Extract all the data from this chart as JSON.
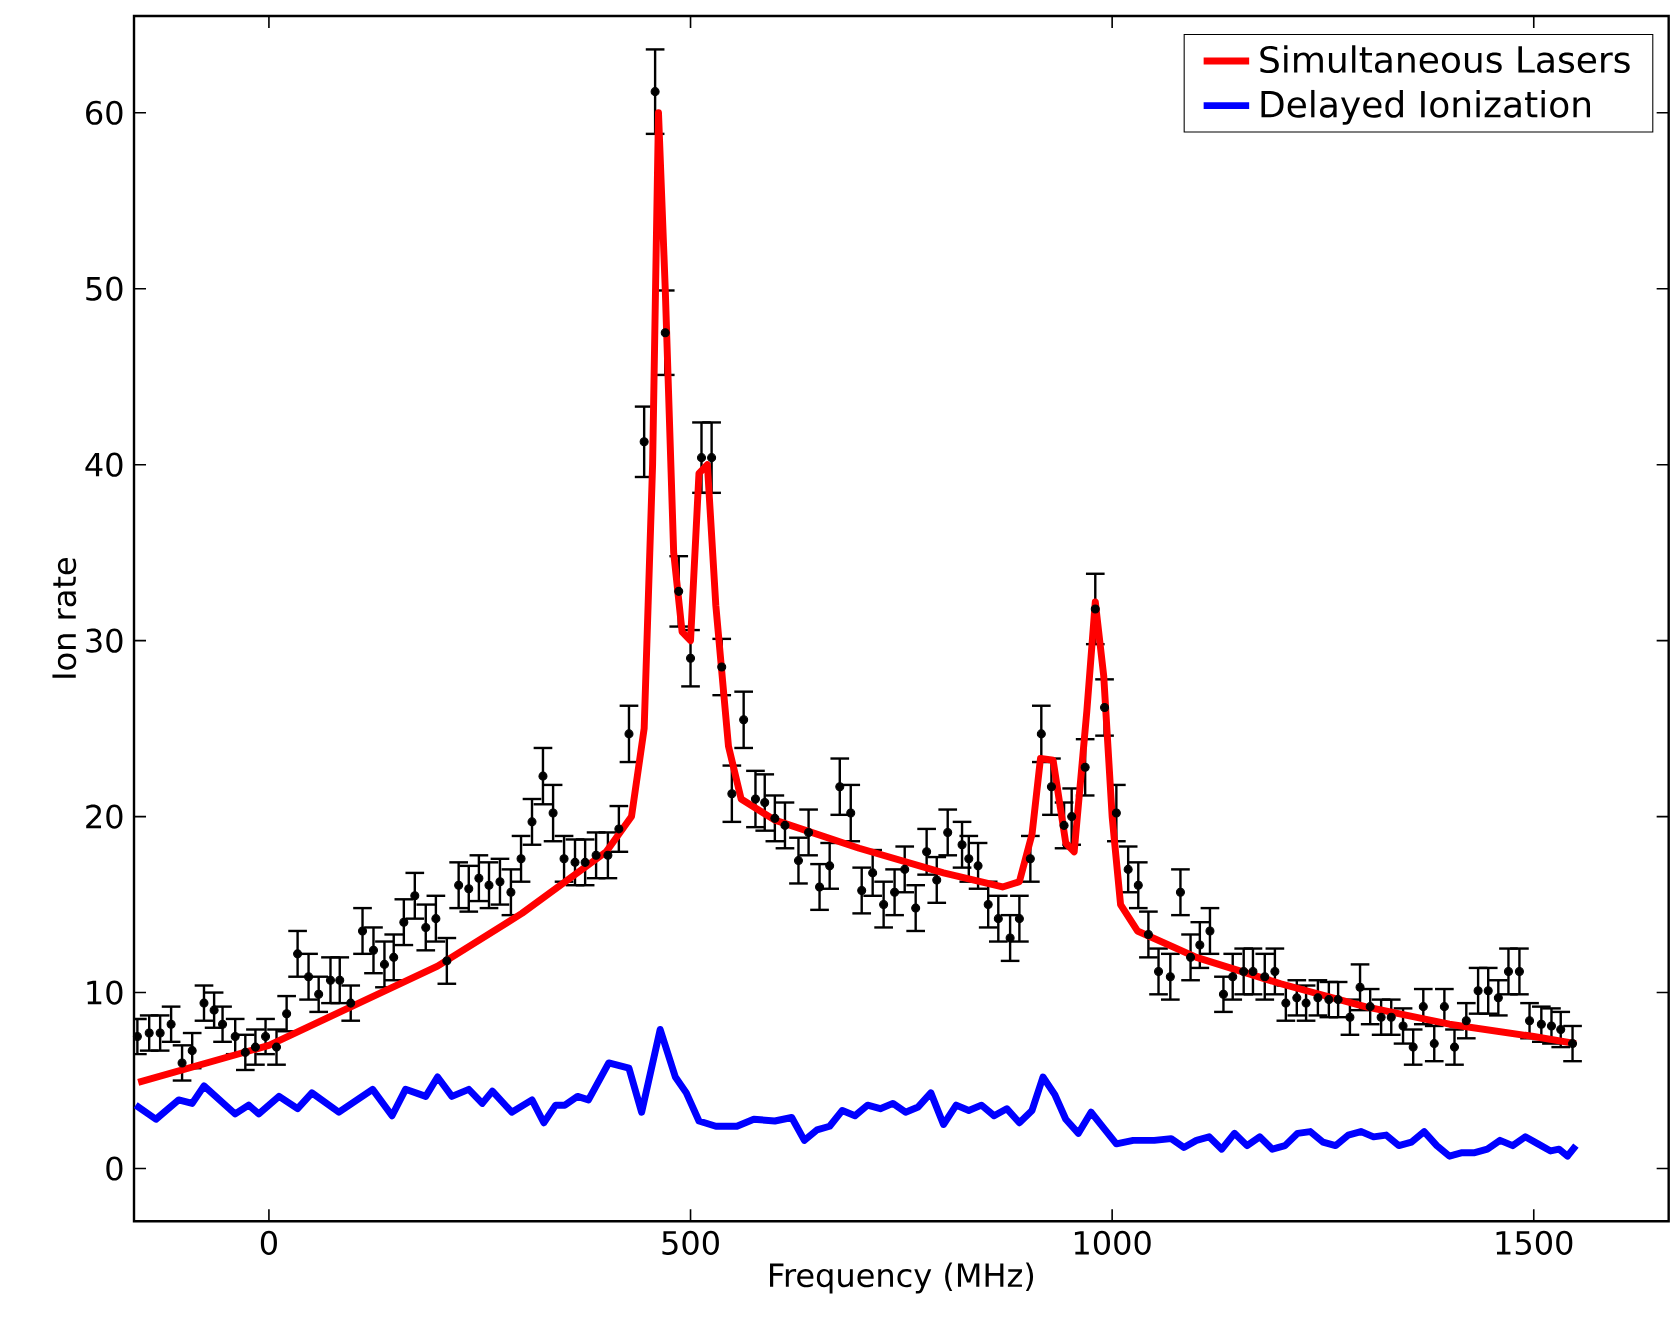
{
  "chart_data": {
    "type": "line",
    "xlabel": "Frequency (MHz)",
    "ylabel": "Ion rate",
    "xlim": [
      -160,
      1660
    ],
    "ylim": [
      -3,
      65.5
    ],
    "xticks": [
      0,
      500,
      1000,
      1500
    ],
    "yticks": [
      0,
      10,
      20,
      30,
      40,
      50,
      60
    ],
    "legend": "top right",
    "series": [
      {
        "type": "scatter",
        "color": "#000000",
        "x": [
          -156,
          -142,
          -129,
          -116,
          -103,
          -91,
          -77,
          -65,
          -55,
          -40,
          -28,
          -16,
          -4,
          9,
          21,
          34,
          47,
          59,
          73,
          84,
          97,
          111,
          124,
          137,
          148,
          160,
          173,
          186,
          198,
          211,
          225,
          237,
          249,
          261,
          274,
          287,
          299,
          312,
          325,
          337,
          350,
          363,
          375,
          388,
          402,
          415,
          427,
          445,
          458,
          470,
          486,
          500,
          513,
          525,
          537,
          549,
          563,
          577,
          588,
          600,
          612,
          628,
          640,
          653,
          665,
          677,
          690,
          703,
          716,
          729,
          742,
          754,
          767,
          780,
          792,
          805,
          822,
          830,
          841,
          853,
          865,
          879,
          890,
          903,
          916,
          928,
          943,
          952,
          968,
          980,
          991,
          1005,
          1019,
          1031,
          1043,
          1055,
          1069,
          1081,
          1093,
          1104,
          1116,
          1132,
          1143,
          1156,
          1167,
          1181,
          1193,
          1206,
          1219,
          1230,
          1244,
          1257,
          1268,
          1282,
          1294,
          1306,
          1319,
          1331,
          1345,
          1357,
          1369,
          1382,
          1394,
          1406,
          1420,
          1434,
          1446,
          1458,
          1470,
          1483,
          1495,
          1509,
          1521,
          1532,
          1546
        ],
        "values": [
          7.5,
          7.7,
          7.7,
          8.2,
          6.0,
          6.7,
          9.4,
          9.0,
          8.2,
          7.5,
          6.6,
          6.9,
          7.5,
          6.9,
          8.8,
          12.2,
          10.9,
          9.9,
          10.7,
          10.7,
          9.4,
          13.5,
          12.4,
          11.6,
          12.0,
          14.0,
          15.5,
          13.7,
          14.2,
          11.8,
          16.1,
          15.9,
          16.5,
          16.1,
          16.3,
          15.7,
          17.6,
          19.7,
          22.3,
          20.2,
          17.6,
          17.4,
          17.4,
          17.8,
          17.8,
          19.3,
          24.7,
          41.3,
          61.2,
          47.5,
          32.8,
          29.0,
          40.4,
          40.4,
          28.5,
          21.3,
          25.5,
          21.0,
          20.8,
          19.9,
          19.5,
          17.5,
          19.1,
          16.0,
          17.2,
          21.7,
          20.2,
          15.8,
          16.8,
          15.0,
          15.7,
          17.0,
          14.8,
          18.0,
          16.4,
          19.1,
          18.4,
          17.6,
          17.2,
          15.0,
          14.2,
          13.1,
          14.2,
          17.6,
          24.7,
          21.7,
          19.5,
          20.0,
          22.8,
          31.8,
          26.2,
          20.2,
          17.0,
          16.1,
          13.3,
          11.2,
          10.9,
          15.7,
          12.0,
          12.7,
          13.5,
          9.9,
          10.9,
          11.2,
          11.2,
          10.9,
          11.2,
          9.4,
          9.7,
          9.4,
          9.7,
          9.6,
          9.6,
          8.6,
          10.3,
          9.2,
          8.6,
          8.6,
          8.1,
          6.9,
          9.2,
          7.1,
          9.2,
          6.9,
          8.4,
          10.1,
          10.1,
          9.7,
          11.2,
          11.2,
          8.4,
          8.2,
          8.1,
          7.9,
          7.1
        ],
        "errors": [
          1.0,
          1.0,
          1.0,
          1.0,
          1.0,
          1.0,
          1.0,
          1.0,
          1.0,
          1.0,
          1.0,
          1.0,
          1.0,
          1.0,
          1.0,
          1.3,
          1.3,
          1.0,
          1.3,
          1.3,
          1.0,
          1.3,
          1.3,
          1.3,
          1.3,
          1.3,
          1.3,
          1.3,
          1.3,
          1.3,
          1.3,
          1.3,
          1.3,
          1.3,
          1.3,
          1.3,
          1.3,
          1.3,
          1.6,
          1.6,
          1.3,
          1.3,
          1.3,
          1.3,
          1.3,
          1.3,
          1.6,
          2.0,
          2.4,
          2.4,
          2.0,
          1.6,
          2.0,
          2.0,
          1.6,
          1.6,
          1.6,
          1.6,
          1.6,
          1.3,
          1.3,
          1.3,
          1.3,
          1.3,
          1.3,
          1.6,
          1.6,
          1.3,
          1.3,
          1.3,
          1.3,
          1.3,
          1.3,
          1.3,
          1.3,
          1.3,
          1.3,
          1.3,
          1.3,
          1.3,
          1.3,
          1.3,
          1.3,
          1.3,
          1.6,
          1.6,
          1.3,
          1.6,
          1.6,
          2.0,
          1.6,
          1.6,
          1.3,
          1.3,
          1.3,
          1.3,
          1.3,
          1.3,
          1.3,
          1.3,
          1.3,
          1.0,
          1.3,
          1.3,
          1.3,
          1.3,
          1.3,
          1.0,
          1.0,
          1.0,
          1.0,
          1.0,
          1.0,
          1.0,
          1.3,
          1.0,
          1.0,
          1.0,
          1.0,
          1.0,
          1.0,
          1.0,
          1.0,
          1.0,
          1.0,
          1.3,
          1.3,
          1.0,
          1.3,
          1.3,
          1.0,
          1.0,
          1.0,
          1.0,
          1.0
        ]
      },
      {
        "name": "Simultaneous Lasers",
        "color": "#ff0000",
        "x": [
          -155,
          0,
          200,
          300,
          400,
          430,
          445,
          455,
          462,
          470,
          480,
          490,
          500,
          510,
          520,
          530,
          545,
          560,
          600,
          700,
          800,
          870,
          890,
          905,
          915,
          930,
          945,
          955,
          970,
          980,
          990,
          1000,
          1010,
          1030,
          1100,
          1200,
          1300,
          1400,
          1500,
          1550
        ],
        "values": [
          4.9,
          7.0,
          11.5,
          14.5,
          18.0,
          20.0,
          25.0,
          40.0,
          60.0,
          50.0,
          35.0,
          30.5,
          30.0,
          39.5,
          40.0,
          32.0,
          24.0,
          21.0,
          19.8,
          18.2,
          16.8,
          16.0,
          16.3,
          19.0,
          23.3,
          23.2,
          18.5,
          18.0,
          26.0,
          32.2,
          28.0,
          20.0,
          15.0,
          13.5,
          12.0,
          10.5,
          9.2,
          8.2,
          7.5,
          7.1
        ]
      },
      {
        "name": "Delayed Ionization",
        "color": "#0000ff",
        "x": [
          -158,
          -134,
          -107,
          -91,
          -77,
          -40,
          -24,
          -12,
          12,
          34,
          51,
          83,
          123,
          146,
          162,
          186,
          200,
          217,
          237,
          253,
          265,
          288,
          312,
          326,
          340,
          351,
          366,
          379,
          403,
          427,
          442,
          464,
          482,
          495,
          510,
          530,
          555,
          575,
          600,
          620,
          635,
          650,
          665,
          680,
          695,
          710,
          725,
          740,
          755,
          770,
          785,
          800,
          815,
          830,
          845,
          860,
          875,
          890,
          905,
          918,
          932,
          945,
          960,
          975,
          990,
          1005,
          1025,
          1050,
          1070,
          1085,
          1100,
          1115,
          1130,
          1145,
          1160,
          1175,
          1190,
          1205,
          1220,
          1235,
          1250,
          1265,
          1280,
          1295,
          1310,
          1325,
          1340,
          1355,
          1370,
          1385,
          1400,
          1415,
          1430,
          1445,
          1460,
          1475,
          1490,
          1505,
          1520,
          1530,
          1540,
          1550
        ],
        "values": [
          3.6,
          2.8,
          3.9,
          3.7,
          4.7,
          3.1,
          3.6,
          3.1,
          4.1,
          3.4,
          4.3,
          3.2,
          4.5,
          3.0,
          4.5,
          4.1,
          5.2,
          4.1,
          4.5,
          3.7,
          4.4,
          3.2,
          3.9,
          2.6,
          3.6,
          3.6,
          4.1,
          3.9,
          6.0,
          5.7,
          3.2,
          7.9,
          5.2,
          4.3,
          2.7,
          2.4,
          2.4,
          2.8,
          2.7,
          2.9,
          1.6,
          2.2,
          2.4,
          3.3,
          3.0,
          3.6,
          3.4,
          3.7,
          3.2,
          3.5,
          4.3,
          2.5,
          3.6,
          3.3,
          3.6,
          3.0,
          3.4,
          2.6,
          3.3,
          5.2,
          4.2,
          2.8,
          2.0,
          3.2,
          2.3,
          1.4,
          1.6,
          1.6,
          1.7,
          1.2,
          1.6,
          1.8,
          1.1,
          2.0,
          1.3,
          1.8,
          1.1,
          1.3,
          2.0,
          2.1,
          1.5,
          1.3,
          1.9,
          2.1,
          1.8,
          1.9,
          1.3,
          1.5,
          2.1,
          1.3,
          0.7,
          0.9,
          0.9,
          1.1,
          1.6,
          1.3,
          1.8,
          1.4,
          1.0,
          1.1,
          0.7,
          1.3
        ]
      }
    ]
  }
}
